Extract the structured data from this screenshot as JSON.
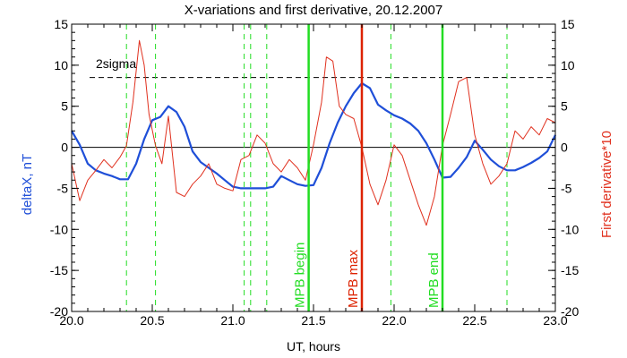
{
  "chart_data": {
    "type": "line",
    "title": "X-variations and first derivative, 20.12.2007",
    "xlabel": "UT, hours",
    "ylabel_left": "deltaX, nT",
    "ylabel_right": "First derivative*10",
    "xlim": [
      20.0,
      23.0
    ],
    "ylim": [
      -20,
      15
    ],
    "x_ticks": [
      "20.0",
      "20.5",
      "21.0",
      "21.5",
      "22.0",
      "22.5",
      "23.0"
    ],
    "y_ticks": [
      "-20",
      "-15",
      "-10",
      "-5",
      "0",
      "5",
      "10",
      "15"
    ],
    "colors": {
      "deltaX": "#1f4fd8",
      "derivative": "#e0301e",
      "mpb_marker": "#22dd22",
      "max_marker": "#dd2200",
      "dashed_marker": "#22dd22"
    },
    "threshold": {
      "label": "2sigma",
      "y": 8.5
    },
    "zero_line": 0,
    "dashed_verticals": [
      20.34,
      20.52,
      21.07,
      21.11,
      21.21,
      21.98,
      22.7
    ],
    "markers": [
      {
        "label": "MPB begin",
        "x": 21.47,
        "color": "#22dd22"
      },
      {
        "label": "MPB max",
        "x": 21.8,
        "color": "#dd2200"
      },
      {
        "label": "MPB end",
        "x": 22.3,
        "color": "#22dd22"
      }
    ],
    "series": [
      {
        "key": "deltaX",
        "axis": "left",
        "x": [
          20.0,
          20.05,
          20.1,
          20.15,
          20.2,
          20.25,
          20.3,
          20.35,
          20.4,
          20.45,
          20.5,
          20.55,
          20.6,
          20.65,
          20.7,
          20.75,
          20.8,
          20.85,
          20.9,
          20.95,
          21.0,
          21.05,
          21.1,
          21.15,
          21.2,
          21.25,
          21.3,
          21.35,
          21.4,
          21.45,
          21.5,
          21.55,
          21.6,
          21.65,
          21.7,
          21.75,
          21.8,
          21.85,
          21.9,
          21.95,
          22.0,
          22.05,
          22.1,
          22.15,
          22.2,
          22.25,
          22.3,
          22.35,
          22.4,
          22.45,
          22.5,
          22.55,
          22.6,
          22.65,
          22.7,
          22.75,
          22.8,
          22.85,
          22.9,
          22.95,
          23.0
        ],
        "values": [
          2.0,
          0.3,
          -2.0,
          -2.8,
          -3.2,
          -3.5,
          -3.9,
          -3.9,
          -2.0,
          1.0,
          3.3,
          3.7,
          5.0,
          4.3,
          2.5,
          -0.5,
          -1.8,
          -2.5,
          -3.2,
          -4.0,
          -4.8,
          -5.0,
          -5.0,
          -5.0,
          -5.0,
          -4.8,
          -3.5,
          -4.0,
          -4.5,
          -4.7,
          -4.6,
          -2.5,
          0.5,
          3.0,
          5.0,
          6.6,
          7.8,
          7.2,
          5.2,
          4.5,
          3.9,
          3.5,
          2.9,
          2.0,
          0.5,
          -1.5,
          -3.7,
          -3.6,
          -2.5,
          -1.2,
          0.8,
          -0.3,
          -1.5,
          -2.3,
          -2.8,
          -2.8,
          -2.4,
          -1.9,
          -1.3,
          -0.5,
          1.5
        ]
      },
      {
        "key": "derivative",
        "axis": "right",
        "x": [
          20.0,
          20.05,
          20.1,
          20.15,
          20.2,
          20.25,
          20.3,
          20.34,
          20.38,
          20.42,
          20.45,
          20.48,
          20.52,
          20.56,
          20.6,
          20.65,
          20.7,
          20.75,
          20.8,
          20.85,
          20.9,
          20.95,
          21.0,
          21.05,
          21.1,
          21.15,
          21.2,
          21.25,
          21.3,
          21.35,
          21.4,
          21.45,
          21.5,
          21.55,
          21.58,
          21.62,
          21.66,
          21.7,
          21.75,
          21.8,
          21.85,
          21.9,
          21.95,
          22.0,
          22.05,
          22.1,
          22.15,
          22.2,
          22.25,
          22.3,
          22.35,
          22.4,
          22.45,
          22.5,
          22.55,
          22.6,
          22.65,
          22.7,
          22.75,
          22.8,
          22.85,
          22.9,
          22.95,
          23.0
        ],
        "values": [
          -2.0,
          -6.5,
          -4.0,
          -2.8,
          -1.5,
          -2.5,
          -1.2,
          0.2,
          5.5,
          13.0,
          10.0,
          4.0,
          0.2,
          -2.0,
          3.8,
          -5.5,
          -6.0,
          -4.5,
          -3.5,
          -2.0,
          -4.5,
          -5.0,
          -5.3,
          -1.5,
          -1.0,
          1.5,
          0.5,
          -2.0,
          -3.0,
          -1.5,
          -2.5,
          -4.0,
          0.3,
          5.5,
          11.0,
          10.5,
          5.0,
          4.0,
          3.5,
          0.0,
          -4.5,
          -7.0,
          -4.0,
          0.3,
          -1.0,
          -4.0,
          -7.0,
          -9.5,
          -6.0,
          0.2,
          4.0,
          8.0,
          8.5,
          1.5,
          -2.0,
          -4.5,
          -3.5,
          -2.0,
          2.0,
          1.0,
          2.5,
          1.5,
          3.5,
          3.0
        ]
      }
    ]
  }
}
